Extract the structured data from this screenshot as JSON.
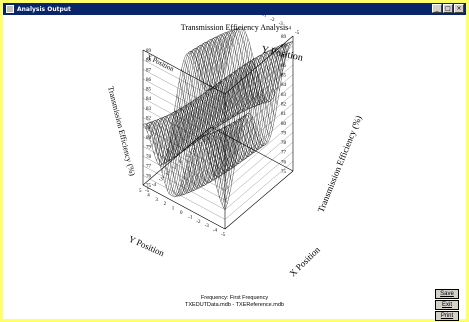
{
  "window": {
    "title": "Analysis Output",
    "controls": [
      "_",
      "□",
      "×"
    ]
  },
  "chart_data": {
    "type": "surface",
    "title": "Transmission Efficiency Analysis",
    "axis_labels": {
      "y_top": "Y Position",
      "x_top": "X Position",
      "z_left": "Transmission Efficiency (%)",
      "z_right": "Transmission Efficiency (%)",
      "y_bottom": "Y Position",
      "x_bottom": "X Position"
    },
    "y_ticks_top": [
      "5",
      "4",
      "3",
      "2",
      "1",
      "0",
      "-1",
      "-2",
      "-3",
      "-4",
      "-5"
    ],
    "z_ticks_left": [
      "89",
      "88",
      "87",
      "86",
      "85",
      "84",
      "83",
      "82",
      "81",
      "80",
      "79",
      "78",
      "77",
      "76",
      "75"
    ],
    "z_ticks_right": [
      "89",
      "88",
      "87",
      "86",
      "85",
      "84",
      "83",
      "82",
      "81",
      "80",
      "79",
      "78",
      "77",
      "76",
      "75"
    ],
    "x_ticks_bottom": [
      "-5",
      "-4",
      "-3",
      "-2",
      "-1",
      "0",
      "1",
      "2",
      "3",
      "4",
      "5"
    ],
    "y_ticks_bottom": [
      "5",
      "4",
      "3",
      "2",
      "1",
      "0",
      "-1",
      "-2",
      "-3",
      "-4",
      "-5"
    ],
    "zlim": [
      75,
      89
    ]
  },
  "footer": {
    "line1": "Frequency: First Frequency",
    "line2": "TXEDUTData.mdb - TXEReference.mdb"
  },
  "buttons": {
    "save": "Save",
    "exit": "Exit",
    "print": "Print"
  }
}
